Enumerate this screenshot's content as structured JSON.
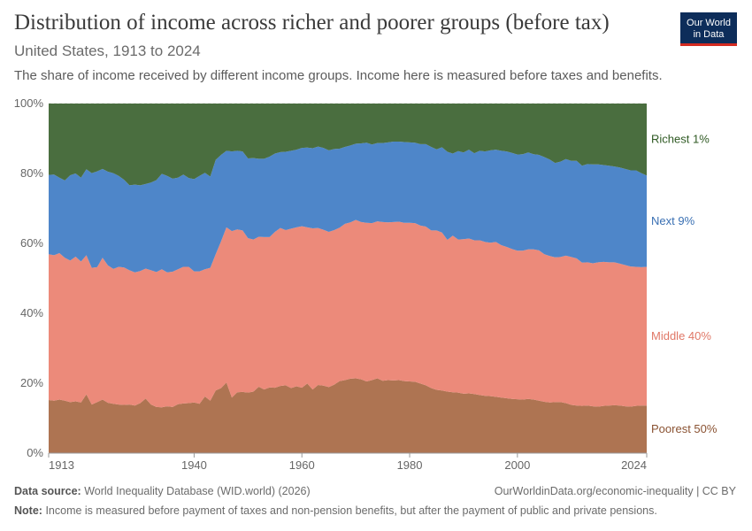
{
  "header": {
    "title": "Distribution of income across richer and poorer groups (before tax)",
    "subtitle": "United States, 1913 to 2024",
    "description": "The share of income received by different income groups. Income here is measured before taxes and benefits.",
    "logo_line1": "Our World",
    "logo_line2": "in Data"
  },
  "footer": {
    "source_label": "Data source:",
    "source_text": "World Inequality Database (WID.world) (2026)",
    "credit": "OurWorldinData.org/economic-inequality | CC BY",
    "note_label": "Note:",
    "note_text": "Income is measured before payment of taxes and non-pension benefits, but after the payment of public and private pensions."
  },
  "colors": {
    "poorest": "#ae7452",
    "middle": "#ec8a7a",
    "next": "#4e86c9",
    "richest": "#4a6e3f",
    "axis": "#666666",
    "grid": "#d9d9d9"
  },
  "chart_data": {
    "type": "area",
    "stacked": true,
    "x": [
      1913,
      1914,
      1915,
      1916,
      1917,
      1918,
      1919,
      1920,
      1921,
      1922,
      1923,
      1924,
      1925,
      1926,
      1927,
      1928,
      1929,
      1930,
      1931,
      1932,
      1933,
      1934,
      1935,
      1936,
      1937,
      1938,
      1939,
      1940,
      1941,
      1942,
      1943,
      1944,
      1945,
      1946,
      1947,
      1948,
      1949,
      1950,
      1951,
      1952,
      1953,
      1954,
      1955,
      1956,
      1957,
      1958,
      1959,
      1960,
      1961,
      1962,
      1963,
      1964,
      1965,
      1966,
      1967,
      1968,
      1969,
      1970,
      1971,
      1972,
      1973,
      1974,
      1975,
      1976,
      1977,
      1978,
      1979,
      1980,
      1981,
      1982,
      1983,
      1984,
      1985,
      1986,
      1987,
      1988,
      1989,
      1990,
      1991,
      1992,
      1993,
      1994,
      1995,
      1996,
      1997,
      1998,
      1999,
      2000,
      2001,
      2002,
      2003,
      2004,
      2005,
      2006,
      2007,
      2008,
      2009,
      2010,
      2011,
      2012,
      2013,
      2014,
      2015,
      2016,
      2017,
      2018,
      2019,
      2020,
      2021,
      2022,
      2023,
      2024
    ],
    "series": [
      {
        "name": "Poorest 50%",
        "color": "#ae7452",
        "values": [
          15.2,
          15.0,
          15.3,
          15.0,
          14.6,
          14.8,
          14.5,
          16.8,
          13.9,
          14.6,
          15.3,
          14.4,
          14.1,
          13.9,
          13.8,
          13.9,
          13.6,
          14.3,
          15.6,
          13.9,
          13.2,
          13.1,
          13.4,
          13.2,
          14.0,
          14.2,
          14.3,
          14.5,
          14.1,
          16.2,
          15.0,
          17.9,
          18.6,
          20.2,
          15.9,
          17.4,
          17.5,
          17.3,
          17.6,
          19.0,
          18.2,
          18.8,
          18.7,
          19.2,
          19.4,
          18.6,
          19.1,
          18.7,
          19.9,
          18.2,
          19.5,
          19.3,
          18.9,
          19.6,
          20.6,
          20.9,
          21.3,
          21.4,
          21.1,
          20.5,
          20.9,
          21.4,
          20.7,
          20.9,
          20.8,
          20.9,
          20.6,
          20.5,
          20.4,
          19.9,
          19.4,
          18.6,
          18.1,
          17.9,
          17.6,
          17.4,
          17.3,
          17.0,
          17.1,
          16.9,
          16.6,
          16.4,
          16.3,
          16.1,
          15.9,
          15.7,
          15.5,
          15.4,
          15.3,
          15.5,
          15.3,
          15.0,
          14.7,
          14.5,
          14.6,
          14.6,
          14.3,
          13.8,
          13.6,
          13.5,
          13.6,
          13.4,
          13.3,
          13.5,
          13.6,
          13.7,
          13.6,
          13.4,
          13.3,
          13.5,
          13.6,
          13.6
        ]
      },
      {
        "name": "Middle 40%",
        "color": "#ec8a7a",
        "values": [
          41.7,
          41.6,
          41.9,
          40.9,
          40.5,
          41.4,
          40.3,
          39.8,
          39.1,
          38.6,
          40.6,
          39.3,
          38.6,
          39.4,
          39.3,
          38.4,
          38.1,
          37.8,
          37.2,
          38.4,
          38.6,
          39.5,
          38.3,
          38.7,
          38.6,
          39.1,
          39.0,
          37.5,
          37.9,
          36.4,
          38.0,
          39.0,
          42.0,
          44.4,
          47.6,
          46.6,
          46.2,
          44.2,
          43.5,
          42.9,
          43.6,
          43.0,
          44.6,
          45.2,
          44.4,
          45.6,
          45.5,
          46.2,
          44.7,
          46.1,
          44.9,
          44.6,
          44.4,
          44.2,
          43.9,
          44.7,
          44.7,
          45.3,
          45.0,
          45.4,
          44.9,
          44.9,
          45.4,
          45.1,
          45.3,
          45.3,
          45.3,
          45.4,
          45.4,
          45.2,
          45.4,
          45.1,
          45.6,
          45.2,
          43.4,
          44.8,
          43.8,
          44.2,
          44.3,
          44.0,
          44.3,
          44.0,
          43.9,
          44.3,
          43.6,
          43.3,
          42.9,
          42.5,
          42.6,
          42.8,
          43.0,
          43.0,
          42.2,
          41.9,
          41.4,
          41.5,
          42.2,
          42.3,
          42.1,
          41.0,
          41.0,
          40.9,
          41.3,
          41.2,
          41.0,
          40.9,
          40.6,
          40.4,
          40.1,
          39.8,
          39.6,
          39.7
        ]
      },
      {
        "name": "Next 9%",
        "color": "#4e86c9",
        "values": [
          22.7,
          23.1,
          21.6,
          22.1,
          24.4,
          23.8,
          24.0,
          24.6,
          27.1,
          27.4,
          25.4,
          26.8,
          27.4,
          26.0,
          25.1,
          24.3,
          25.1,
          24.5,
          24.2,
          25.1,
          26.3,
          27.3,
          27.6,
          26.6,
          26.2,
          26.4,
          25.4,
          26.4,
          27.3,
          27.6,
          26.1,
          27.0,
          24.7,
          21.9,
          22.8,
          22.5,
          22.6,
          22.8,
          23.3,
          22.3,
          22.4,
          23.0,
          22.4,
          21.7,
          22.4,
          22.3,
          22.2,
          22.4,
          22.8,
          22.9,
          23.3,
          23.4,
          23.3,
          23.2,
          22.6,
          22.0,
          22.0,
          21.8,
          22.5,
          22.9,
          22.5,
          22.4,
          22.6,
          22.9,
          23.0,
          22.9,
          23.1,
          23.0,
          23.0,
          23.3,
          23.6,
          23.9,
          23.2,
          24.4,
          25.2,
          23.5,
          25.3,
          24.8,
          25.4,
          24.9,
          25.6,
          25.9,
          26.4,
          26.4,
          27.0,
          27.3,
          27.5,
          27.5,
          27.6,
          27.7,
          27.2,
          27.3,
          27.8,
          27.6,
          27.0,
          27.3,
          27.6,
          27.5,
          27.9,
          27.7,
          28.1,
          28.3,
          28.0,
          27.7,
          27.6,
          27.4,
          27.5,
          27.5,
          27.5,
          27.6,
          26.9,
          26.1
        ]
      },
      {
        "name": "Richest 1%",
        "color": "#4a6e3f",
        "values": [
          20.4,
          20.3,
          21.2,
          22.0,
          20.5,
          20.0,
          21.2,
          18.8,
          19.9,
          19.4,
          18.7,
          19.5,
          19.9,
          20.7,
          21.8,
          23.4,
          23.2,
          23.4,
          23.0,
          22.6,
          21.9,
          20.1,
          20.7,
          21.5,
          21.2,
          20.3,
          21.3,
          21.6,
          20.7,
          19.8,
          20.9,
          16.1,
          14.7,
          13.5,
          13.7,
          13.5,
          13.7,
          15.7,
          15.6,
          15.8,
          15.8,
          15.2,
          14.3,
          13.9,
          13.8,
          13.5,
          13.2,
          12.7,
          12.6,
          12.8,
          12.3,
          12.7,
          13.4,
          13.0,
          12.9,
          12.4,
          12.0,
          11.5,
          11.4,
          11.2,
          11.7,
          11.3,
          11.3,
          11.1,
          10.9,
          10.9,
          11.0,
          11.1,
          11.2,
          11.6,
          11.6,
          12.4,
          13.1,
          12.5,
          13.8,
          14.3,
          13.6,
          14.0,
          13.2,
          14.2,
          13.5,
          13.7,
          13.4,
          13.2,
          13.5,
          13.7,
          14.1,
          14.6,
          14.5,
          14.0,
          14.5,
          14.7,
          15.3,
          16.0,
          17.0,
          16.6,
          15.9,
          16.4,
          16.4,
          17.8,
          17.3,
          17.4,
          17.4,
          17.6,
          17.8,
          18.0,
          18.3,
          18.7,
          19.1,
          19.1,
          19.9,
          20.6
        ]
      }
    ],
    "yticks": [
      "0%",
      "20%",
      "40%",
      "60%",
      "80%",
      "100%"
    ],
    "xticks": [
      1913,
      1940,
      1960,
      1980,
      2000,
      2024
    ],
    "ylim": [
      0,
      100
    ],
    "xlim": [
      1913,
      2024
    ],
    "grid": true,
    "legend_placement": "right"
  }
}
